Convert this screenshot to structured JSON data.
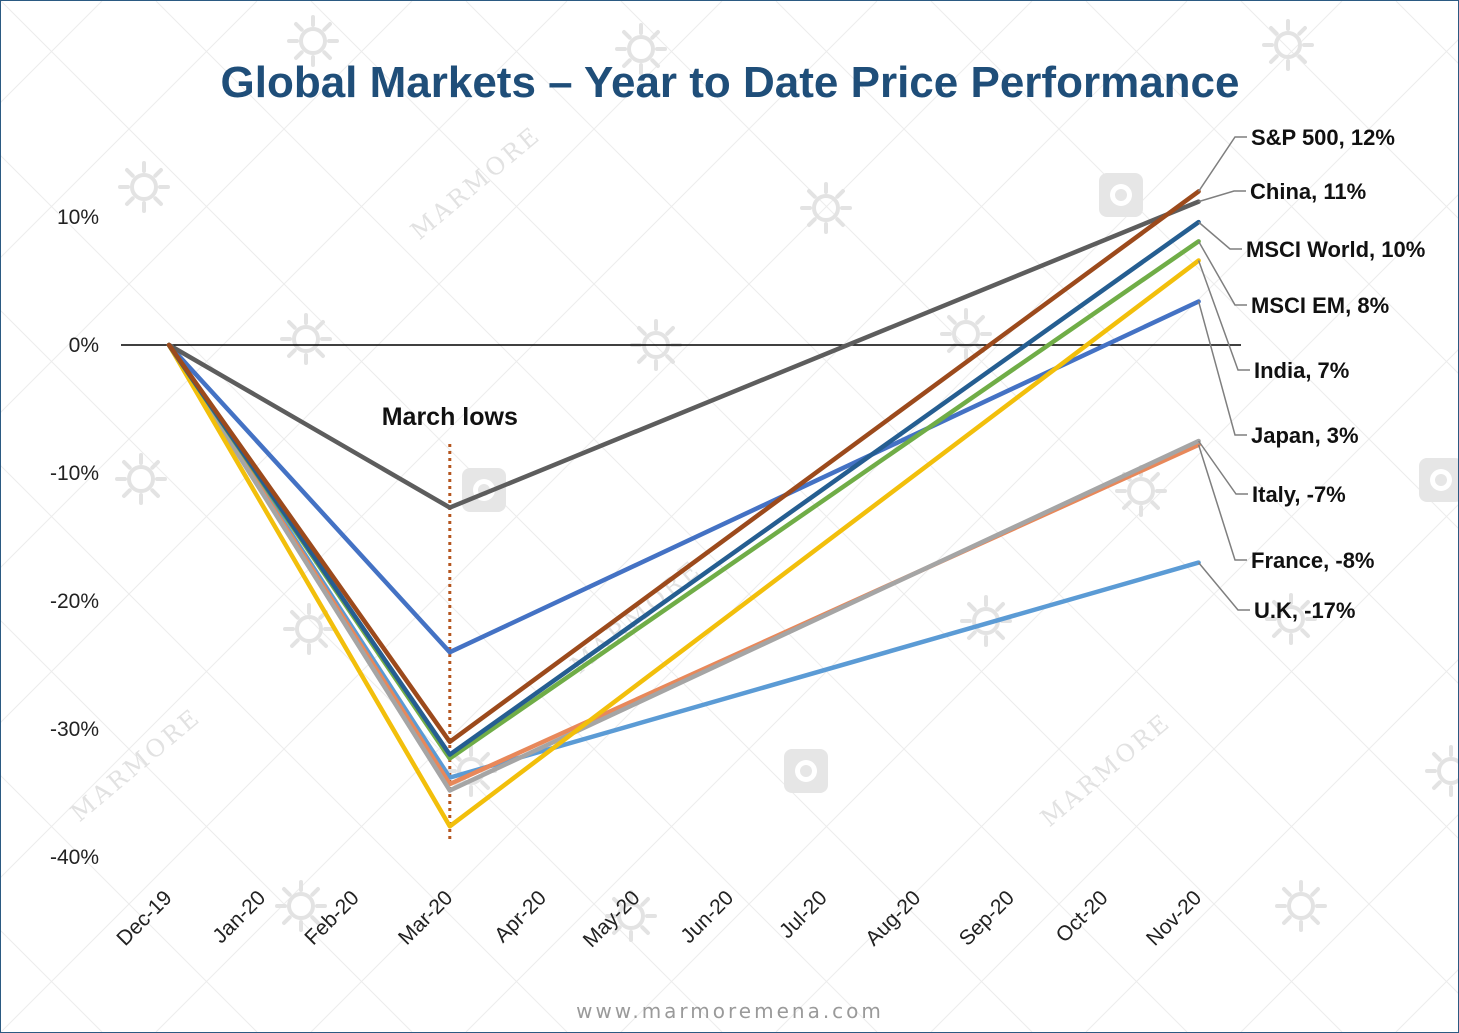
{
  "chart_data": {
    "type": "line",
    "title": "Global Markets – Year to Date Price Performance",
    "xlabel": "",
    "ylabel": "",
    "categories": [
      "Dec-19",
      "Jan-20",
      "Feb-20",
      "Mar-20",
      "Apr-20",
      "May-20",
      "Jun-20",
      "Jul-20",
      "Aug-20",
      "Sep-20",
      "Oct-20",
      "Nov-20"
    ],
    "y_ticks": [
      "10%",
      "0%",
      "-10%",
      "-20%",
      "-30%",
      "-40%"
    ],
    "y_tick_values": [
      10,
      0,
      -10,
      -20,
      -30,
      -40
    ],
    "ylim": [
      -40,
      10
    ],
    "grid": false,
    "legend": "end-of-line labels",
    "annotation": {
      "text": "March lows",
      "x": "Mar-20"
    },
    "series": [
      {
        "name": "S&P 500, 12%",
        "color": "#9c4a1c",
        "points": [
          [
            "Dec-19",
            0
          ],
          [
            "Mar-20",
            -31
          ],
          [
            "Nov-20",
            12
          ]
        ]
      },
      {
        "name": "China, 11%",
        "color": "#5d5d5d",
        "points": [
          [
            "Dec-19",
            0
          ],
          [
            "Mar-20",
            -12.7
          ],
          [
            "Nov-20",
            11.2
          ]
        ]
      },
      {
        "name": "MSCI World, 10%",
        "color": "#255e91",
        "points": [
          [
            "Dec-19",
            0
          ],
          [
            "Mar-20",
            -32
          ],
          [
            "Nov-20",
            9.6
          ]
        ]
      },
      {
        "name": "MSCI EM, 8%",
        "color": "#70ad47",
        "points": [
          [
            "Dec-19",
            0
          ],
          [
            "Mar-20",
            -32.3
          ],
          [
            "Nov-20",
            8.1
          ]
        ]
      },
      {
        "name": "India, 7%",
        "color": "#f2bf0b",
        "points": [
          [
            "Dec-19",
            0
          ],
          [
            "Mar-20",
            -37.6
          ],
          [
            "Nov-20",
            6.6
          ]
        ]
      },
      {
        "name": "Japan, 3%",
        "color": "#4472c4",
        "points": [
          [
            "Dec-19",
            0
          ],
          [
            "Mar-20",
            -24
          ],
          [
            "Nov-20",
            3.4
          ]
        ]
      },
      {
        "name": "Italy, -7%",
        "color": "#a5a5a5",
        "points": [
          [
            "Dec-19",
            0
          ],
          [
            "Mar-20",
            -34.8
          ],
          [
            "Nov-20",
            -7.5
          ]
        ]
      },
      {
        "name": "France, -8%",
        "color": "#e8885a",
        "points": [
          [
            "Dec-19",
            0
          ],
          [
            "Mar-20",
            -34.3
          ],
          [
            "Nov-20",
            -7.8
          ]
        ]
      },
      {
        "name": "U.K, -17%",
        "color": "#5b9bd5",
        "points": [
          [
            "Dec-19",
            0
          ],
          [
            "Mar-20",
            -33.8
          ],
          [
            "Nov-20",
            -17
          ]
        ]
      }
    ],
    "end_labels": [
      {
        "series": "S&P 500, 12%"
      },
      {
        "series": "China, 11%"
      },
      {
        "series": "MSCI World, 10%"
      },
      {
        "series": "MSCI EM, 8%"
      },
      {
        "series": "India, 7%"
      },
      {
        "series": "Japan, 3%"
      },
      {
        "series": "Italy, -7%"
      },
      {
        "series": "France, -8%"
      },
      {
        "series": "U.K, -17%"
      }
    ]
  },
  "watermark": {
    "text": "MARMORE"
  },
  "footer": {
    "url": "www.marmoremena.com"
  },
  "colors": {
    "title": "#1f4e79",
    "frame": "#2b5a82",
    "annotation_line": "#b5561f",
    "leader": "#7f7f7f",
    "zero_line": "#000000"
  }
}
